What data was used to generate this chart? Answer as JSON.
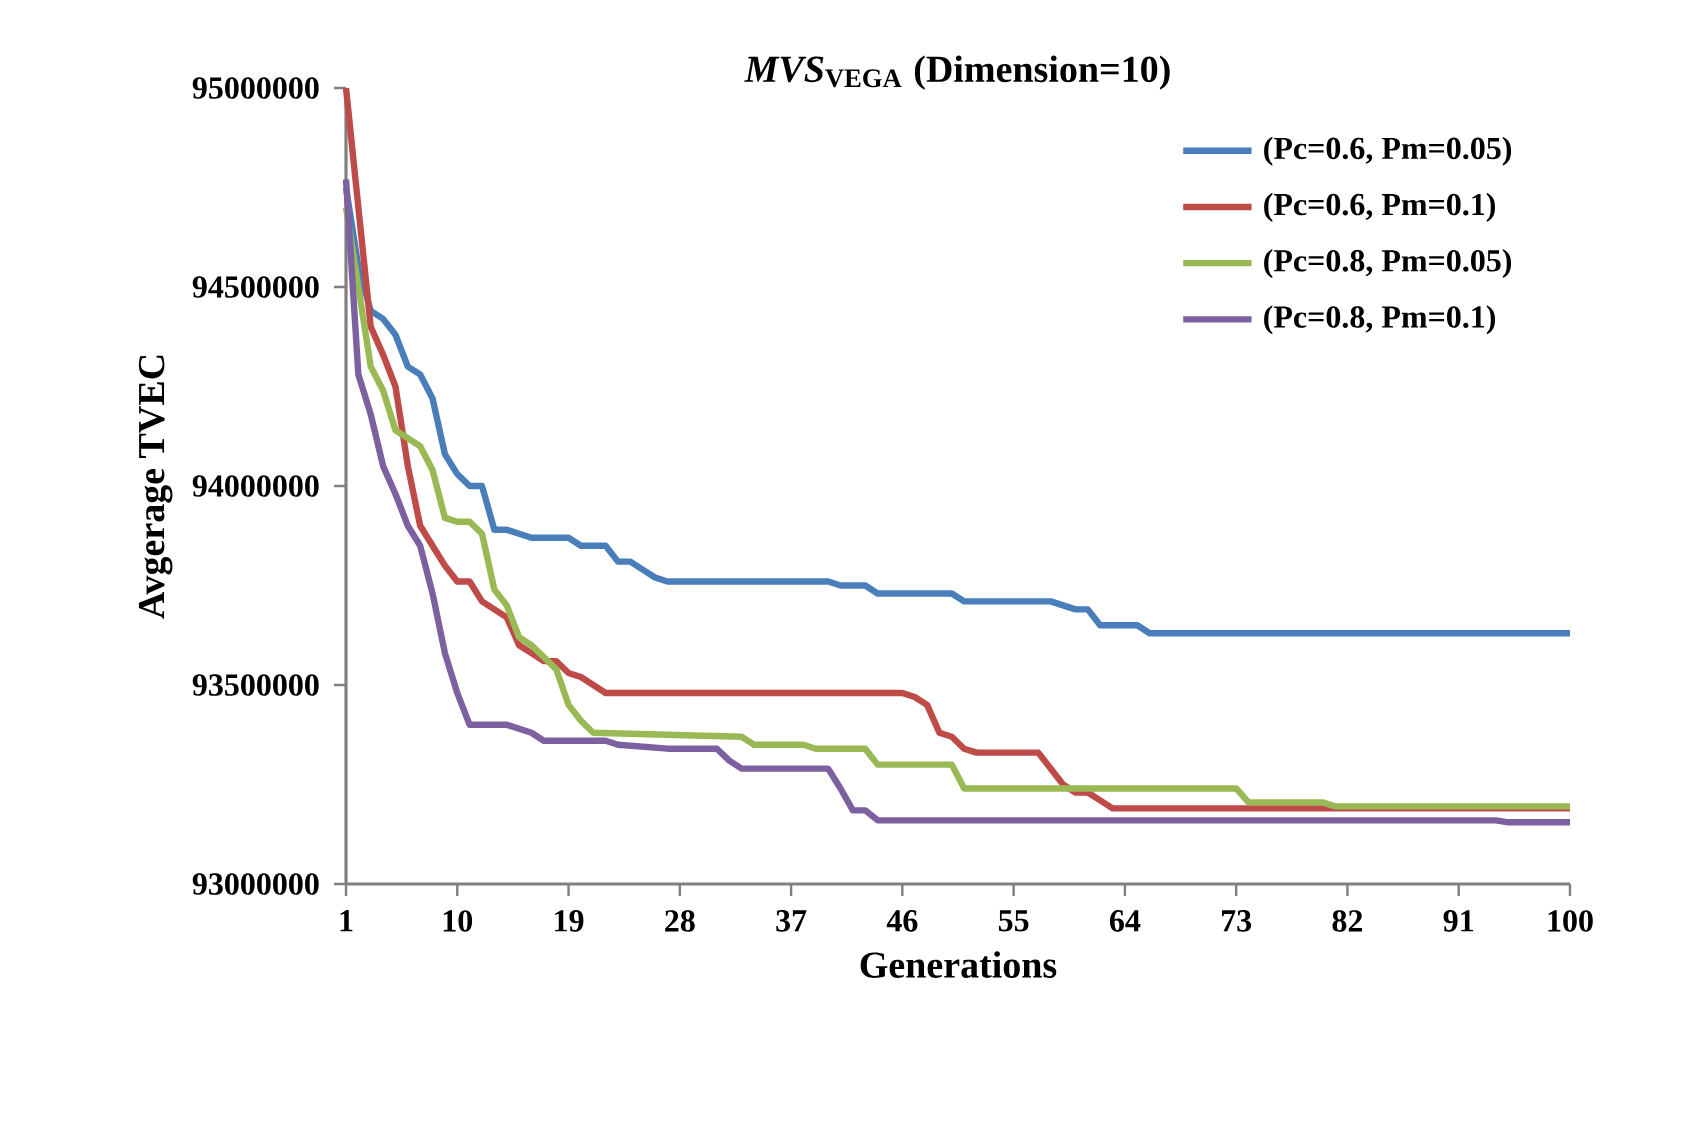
{
  "chart_data": {
    "type": "line",
    "title": "*MVS*$_{VEGA}$ (Dimension=10)",
    "xlabel": "Generations",
    "ylabel": "Avgerage TVEC",
    "xlim": [
      1,
      100
    ],
    "xticks": [
      1,
      10,
      19,
      28,
      37,
      46,
      55,
      64,
      73,
      82,
      91,
      100
    ],
    "ylim": [
      93000000,
      95000000
    ],
    "yticks": [
      93000000,
      93500000,
      94000000,
      94500000,
      95000000
    ],
    "grid": false,
    "legend": "top right",
    "marker": "none",
    "line_style": "solid",
    "series": [
      {
        "name": "(Pc=0.6, Pm=0.05)",
        "color": "#4a7ebb",
        "x": [
          1,
          2,
          3,
          4,
          5,
          6,
          7,
          8,
          9,
          10,
          11,
          12,
          13,
          14,
          15,
          16,
          19,
          20,
          22,
          23,
          24,
          25,
          26,
          27,
          30,
          40,
          41,
          43,
          44,
          50,
          51,
          58,
          59,
          60,
          61,
          62,
          65,
          66,
          100
        ],
        "values": [
          94750000,
          94550000,
          94440000,
          94420000,
          94380000,
          94300000,
          94280000,
          94220000,
          94080000,
          94030000,
          94000000,
          94000000,
          93890000,
          93890000,
          93880000,
          93870000,
          93870000,
          93850000,
          93850000,
          93810000,
          93810000,
          93790000,
          93770000,
          93760000,
          93760000,
          93760000,
          93750000,
          93750000,
          93730000,
          93730000,
          93710000,
          93710000,
          93700000,
          93690000,
          93690000,
          93650000,
          93650000,
          93630000,
          93630000
        ]
      },
      {
        "name": "(Pc=0.6, Pm=0.1)",
        "color": "#be4b48",
        "x": [
          1,
          2,
          3,
          4,
          5,
          6,
          7,
          8,
          9,
          10,
          11,
          12,
          13,
          14,
          15,
          16,
          17,
          18,
          19,
          20,
          21,
          22,
          46,
          47,
          48,
          49,
          50,
          51,
          52,
          57,
          58,
          59,
          60,
          61,
          62,
          63,
          100
        ],
        "values": [
          95000000,
          94700000,
          94400000,
          94330000,
          94250000,
          94050000,
          93900000,
          93850000,
          93800000,
          93760000,
          93760000,
          93710000,
          93690000,
          93670000,
          93600000,
          93580000,
          93560000,
          93560000,
          93530000,
          93520000,
          93500000,
          93480000,
          93480000,
          93470000,
          93450000,
          93380000,
          93370000,
          93340000,
          93330000,
          93330000,
          93290000,
          93250000,
          93230000,
          93230000,
          93210000,
          93190000,
          93190000
        ]
      },
      {
        "name": "(Pc=0.8, Pm=0.05)",
        "color": "#98b954",
        "x": [
          1,
          2,
          3,
          4,
          5,
          6,
          7,
          8,
          9,
          10,
          11,
          12,
          13,
          14,
          15,
          16,
          17,
          18,
          19,
          20,
          21,
          33,
          34,
          38,
          39,
          43,
          44,
          50,
          51,
          73,
          74,
          80,
          81,
          100
        ],
        "values": [
          94700000,
          94500000,
          94300000,
          94240000,
          94140000,
          94120000,
          94100000,
          94040000,
          93920000,
          93910000,
          93910000,
          93880000,
          93740000,
          93700000,
          93620000,
          93600000,
          93570000,
          93540000,
          93450000,
          93410000,
          93380000,
          93370000,
          93350000,
          93350000,
          93340000,
          93340000,
          93300000,
          93300000,
          93240000,
          93240000,
          93205000,
          93205000,
          93195000,
          93195000
        ]
      },
      {
        "name": "(Pc=0.8, Pm=0.1)",
        "color": "#7d60a0",
        "x": [
          1,
          2,
          3,
          4,
          5,
          6,
          7,
          8,
          9,
          10,
          11,
          14,
          15,
          16,
          17,
          22,
          23,
          27,
          31,
          32,
          33,
          40,
          41,
          42,
          43,
          44,
          94,
          95,
          100
        ],
        "values": [
          94770000,
          94280000,
          94180000,
          94050000,
          93980000,
          93900000,
          93850000,
          93730000,
          93580000,
          93480000,
          93400000,
          93400000,
          93390000,
          93380000,
          93360000,
          93360000,
          93350000,
          93340000,
          93340000,
          93310000,
          93290000,
          93290000,
          93240000,
          93185000,
          93185000,
          93160000,
          93160000,
          93155000,
          93155000
        ]
      }
    ]
  }
}
